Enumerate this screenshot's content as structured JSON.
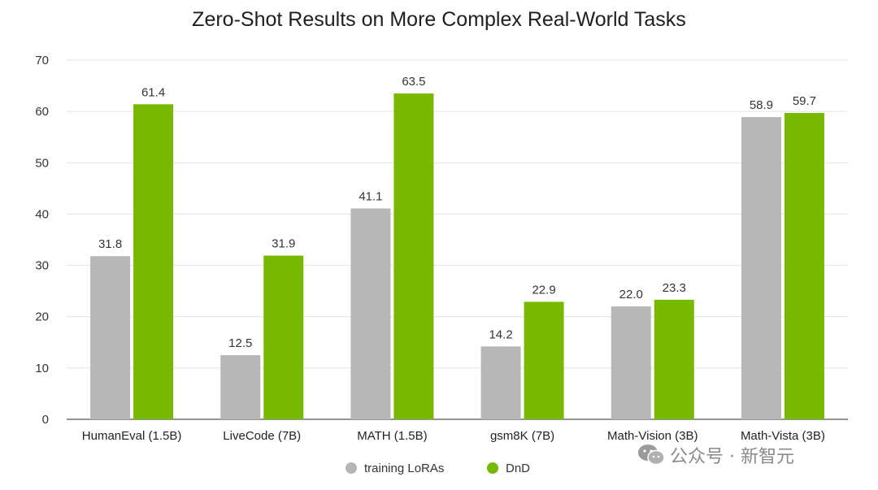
{
  "chart_data": {
    "type": "bar",
    "title": "Zero-Shot Results on More Complex Real-World Tasks",
    "categories": [
      "HumanEval (1.5B)",
      "LiveCode (7B)",
      "MATH (1.5B)",
      "gsm8K (7B)",
      "Math-Vision (3B)",
      "Math-Vista (3B)"
    ],
    "series": [
      {
        "name": "training LoRAs",
        "color": "#b7b7b7",
        "values": [
          31.8,
          12.5,
          41.1,
          14.2,
          22.0,
          58.9
        ],
        "labels": [
          "31.8",
          "12.5",
          "41.1",
          "14.2",
          "22.0",
          "58.9"
        ]
      },
      {
        "name": "DnD",
        "color": "#76b900",
        "values": [
          61.4,
          31.9,
          63.5,
          22.9,
          23.3,
          59.7
        ],
        "labels": [
          "61.4",
          "31.9",
          "63.5",
          "22.9",
          "23.3",
          "59.7"
        ]
      }
    ],
    "ylim": [
      0,
      70
    ],
    "yticks": [
      0,
      10,
      20,
      30,
      40,
      50,
      60,
      70
    ],
    "grid": true,
    "legend_position": "bottom-center"
  },
  "watermark": {
    "icon": "wechat-icon",
    "text": "公众号 · 新智元"
  }
}
